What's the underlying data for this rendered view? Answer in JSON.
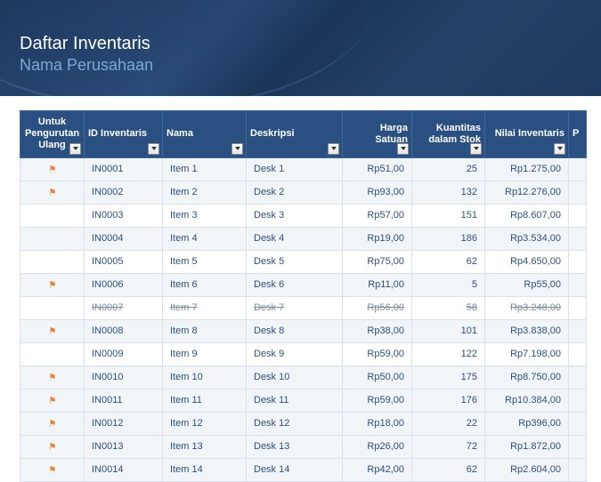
{
  "header": {
    "title": "Daftar Inventaris",
    "subtitle": "Nama Perusahaan"
  },
  "columns": [
    {
      "label": "Untuk Pengurutan Ulang",
      "cls": "c-flag"
    },
    {
      "label": "ID Inventaris",
      "cls": "c-id"
    },
    {
      "label": "Nama",
      "cls": "c-name"
    },
    {
      "label": "Deskripsi",
      "cls": "c-desc"
    },
    {
      "label": "Harga Satuan",
      "cls": "c-price"
    },
    {
      "label": "Kuantitas dalam Stok",
      "cls": "c-qty"
    },
    {
      "label": "Nilai Inventaris",
      "cls": "c-val"
    },
    {
      "label": "P",
      "cls": "c-last"
    }
  ],
  "flag_color": "#e8833a",
  "rows": [
    {
      "flag": true,
      "id": "IN0001",
      "name": "Item 1",
      "desc": "Desk 1",
      "price": "Rp51,00",
      "qty": "25",
      "val": "Rp1.275,00",
      "band": "a",
      "strike": false
    },
    {
      "flag": true,
      "id": "IN0002",
      "name": "Item 2",
      "desc": "Desk 2",
      "price": "Rp93,00",
      "qty": "132",
      "val": "Rp12.276,00",
      "band": "a",
      "strike": false
    },
    {
      "flag": false,
      "id": "IN0003",
      "name": "Item 3",
      "desc": "Desk 3",
      "price": "Rp57,00",
      "qty": "151",
      "val": "Rp8.607,00",
      "band": "b",
      "strike": false
    },
    {
      "flag": false,
      "id": "IN0004",
      "name": "Item 4",
      "desc": "Desk 4",
      "price": "Rp19,00",
      "qty": "186",
      "val": "Rp3.534,00",
      "band": "a",
      "strike": false
    },
    {
      "flag": false,
      "id": "IN0005",
      "name": "Item 5",
      "desc": "Desk 5",
      "price": "Rp75,00",
      "qty": "62",
      "val": "Rp4.650,00",
      "band": "b",
      "strike": false
    },
    {
      "flag": true,
      "id": "IN0006",
      "name": "Item 6",
      "desc": "Desk 6",
      "price": "Rp11,00",
      "qty": "5",
      "val": "Rp55,00",
      "band": "a",
      "strike": false
    },
    {
      "flag": false,
      "id": "IN0007",
      "name": "Item 7",
      "desc": "Desk 7",
      "price": "Rp56,00",
      "qty": "58",
      "val": "Rp3.248,00",
      "band": "b",
      "strike": true
    },
    {
      "flag": true,
      "id": "IN0008",
      "name": "Item 8",
      "desc": "Desk 8",
      "price": "Rp38,00",
      "qty": "101",
      "val": "Rp3.838,00",
      "band": "a",
      "strike": false
    },
    {
      "flag": false,
      "id": "IN0009",
      "name": "Item 9",
      "desc": "Desk 9",
      "price": "Rp59,00",
      "qty": "122",
      "val": "Rp7.198,00",
      "band": "b",
      "strike": false
    },
    {
      "flag": true,
      "id": "IN0010",
      "name": "Item 10",
      "desc": "Desk 10",
      "price": "Rp50,00",
      "qty": "175",
      "val": "Rp8.750,00",
      "band": "a",
      "strike": false
    },
    {
      "flag": true,
      "id": "IN0011",
      "name": "Item 11",
      "desc": "Desk 11",
      "price": "Rp59,00",
      "qty": "176",
      "val": "Rp10.384,00",
      "band": "a",
      "strike": false
    },
    {
      "flag": true,
      "id": "IN0012",
      "name": "Item 12",
      "desc": "Desk 12",
      "price": "Rp18,00",
      "qty": "22",
      "val": "Rp396,00",
      "band": "a",
      "strike": false
    },
    {
      "flag": true,
      "id": "IN0013",
      "name": "Item 13",
      "desc": "Desk 13",
      "price": "Rp26,00",
      "qty": "72",
      "val": "Rp1.872,00",
      "band": "a",
      "strike": false
    },
    {
      "flag": true,
      "id": "IN0014",
      "name": "Item 14",
      "desc": "Desk 14",
      "price": "Rp42,00",
      "qty": "62",
      "val": "Rp2.604,00",
      "band": "a",
      "strike": false
    }
  ]
}
